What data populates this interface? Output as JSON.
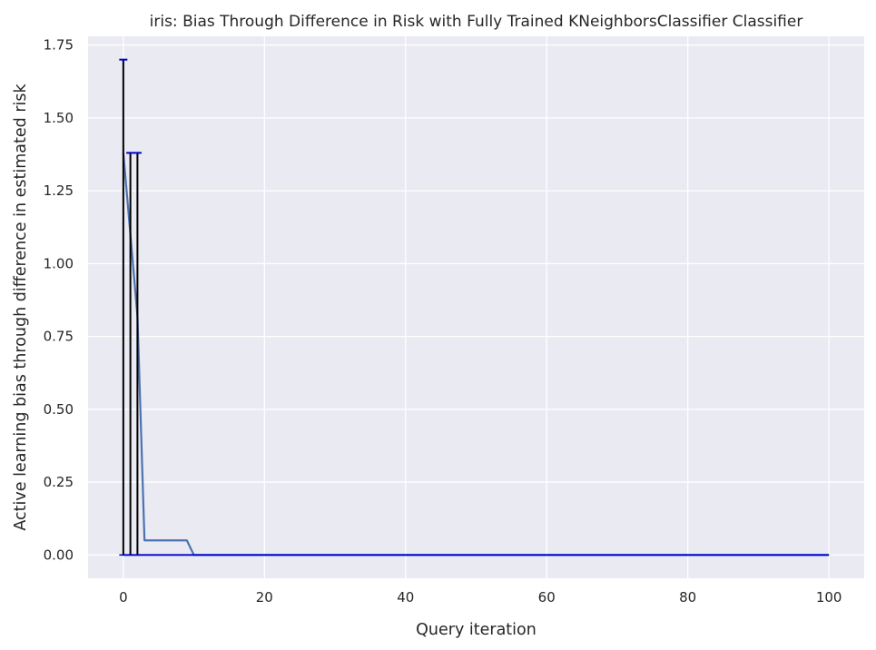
{
  "chart_data": {
    "type": "line",
    "title": "iris: Bias Through Difference in Risk with Fully Trained KNeighborsClassifier Classifier",
    "xlabel": "Query iteration",
    "ylabel": "Active learning bias through difference in estimated risk",
    "xlim": [
      -5,
      105
    ],
    "ylim": [
      -0.08,
      1.78
    ],
    "xticks": [
      0,
      20,
      40,
      60,
      80,
      100
    ],
    "yticks": [
      0.0,
      0.25,
      0.5,
      0.75,
      1.0,
      1.25,
      1.5,
      1.75
    ],
    "xtick_labels": [
      "0",
      "20",
      "40",
      "60",
      "80",
      "100"
    ],
    "ytick_labels": [
      "0.00",
      "0.25",
      "0.50",
      "0.75",
      "1.00",
      "1.25",
      "1.50",
      "1.75"
    ],
    "grid": true,
    "background": "#eaeaf2",
    "line_color": "#4c72b0",
    "errorbar_color": "#000000",
    "errorcap_color": "#0000cc",
    "series": [
      {
        "x": [
          0,
          1,
          2,
          3,
          4,
          5,
          6,
          7,
          8,
          9,
          10,
          100
        ],
        "y": [
          1.38,
          1.1,
          0.82,
          0.05,
          0.05,
          0.05,
          0.05,
          0.05,
          0.05,
          0.05,
          0.0,
          0.0
        ]
      }
    ],
    "errorbars": [
      {
        "x": 0,
        "low": 0.0,
        "high": 1.7
      },
      {
        "x": 1,
        "low": 0.0,
        "high": 1.38
      },
      {
        "x": 2,
        "low": 0.0,
        "high": 1.38
      }
    ],
    "zero_line": {
      "x_start": 0,
      "x_end": 100,
      "y": 0.0
    }
  }
}
